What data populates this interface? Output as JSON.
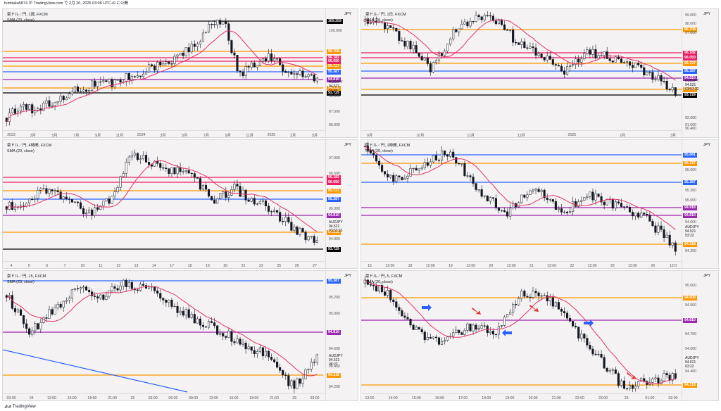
{
  "header": {
    "publish_text": "fumitaka5874 が TradingView.com で 2月 26, 2025 03:06 UTC+9 に公開"
  },
  "footer": {
    "brand": "TradingView"
  },
  "colors": {
    "orange": "#ff9800",
    "pink": "#e91e63",
    "blue": "#2962ff",
    "purple": "#9c27b0",
    "black": "#000000",
    "teal": "#089981",
    "sma": "#e53268"
  },
  "panels": [
    {
      "id": "p1",
      "legend_title": "豪ドル／円, 1週, FXCM",
      "legend_sma": "SMA (20, close)",
      "currency": "JPY",
      "current_symbol": "AUDJPY",
      "current_price": "94.521",
      "current_countdown": "5d 4h",
      "price_ticks": [
        "109.359",
        "105.000",
        "100.000",
        "96.708",
        "96.182",
        "96.050",
        "95.727",
        "95.387",
        "94.810",
        "94.521",
        "94.318",
        "93.729",
        "90.000",
        "87.500",
        "85.000"
      ],
      "levels": [
        {
          "label": "109.359",
          "color": "#000000"
        },
        {
          "label": "96.708",
          "color": "#ff9800"
        },
        {
          "label": "96.182",
          "color": "#e91e63"
        },
        {
          "label": "96.050",
          "color": "#e91e63"
        },
        {
          "label": "95.727",
          "color": "#ff9800"
        },
        {
          "label": "95.387",
          "color": "#2962ff"
        },
        {
          "label": "94.810",
          "color": "#9c27b0"
        },
        {
          "label": "94.318",
          "color": "#ff9800"
        },
        {
          "label": "93.729",
          "color": "#000000"
        }
      ],
      "time_ticks": [
        "2023",
        "3月",
        "5月",
        "7月",
        "9月",
        "11月",
        "2024",
        "3月",
        "5月",
        "7月",
        "9月",
        "11月",
        "2025",
        "3月",
        "5月"
      ]
    },
    {
      "id": "p2",
      "legend_title": "豪ドル／円, 1日, FXCM",
      "legend_sma": "SMA (20, close)",
      "currency": "JPY",
      "current_symbol": "AUDJPY",
      "current_price": "94.521",
      "current_countdown": "03:53:22",
      "price_ticks": [
        "99.000",
        "98.000",
        "97.000",
        "96.708",
        "96.182",
        "96.050",
        "95.727",
        "95.387",
        "94.810",
        "94.521",
        "94.318",
        "93.729",
        "92.000",
        "91.000",
        "90.400"
      ],
      "levels": [
        {
          "label": "96.708",
          "color": "#ff9800"
        },
        {
          "label": "96.182",
          "color": "#e91e63"
        },
        {
          "label": "96.050",
          "color": "#e91e63"
        },
        {
          "label": "95.727",
          "color": "#ff9800"
        },
        {
          "label": "95.387",
          "color": "#2962ff"
        },
        {
          "label": "94.810",
          "color": "#9c27b0"
        },
        {
          "label": "94.318",
          "color": "#ff9800"
        },
        {
          "label": "93.729",
          "color": "#000000"
        }
      ],
      "time_ticks": [
        "9月",
        "10月",
        "11月",
        "12月",
        "2025",
        "2月",
        "3月"
      ]
    },
    {
      "id": "p3",
      "legend_title": "豪ドル／円, 4時間, FXCM",
      "legend_sma": "SMA (20, close)",
      "currency": "JPY",
      "current_symbol": "AUDJPY",
      "current_price": "94.521",
      "current_countdown": "03:53:22",
      "price_ticks": [
        "97.000",
        "96.500",
        "96.182",
        "96.050",
        "95.727",
        "95.387",
        "95.000",
        "94.810",
        "94.521",
        "94.318",
        "94.000",
        "93.729"
      ],
      "levels": [
        {
          "label": "96.182",
          "color": "#e91e63"
        },
        {
          "label": "96.050",
          "color": "#e91e63"
        },
        {
          "label": "95.727",
          "color": "#ff9800"
        },
        {
          "label": "95.387",
          "color": "#2962ff"
        },
        {
          "label": "94.810",
          "color": "#9c27b0"
        },
        {
          "label": "94.318",
          "color": "#ff9800"
        },
        {
          "label": "93.729",
          "color": "#000000"
        }
      ],
      "time_ticks": [
        "4",
        "5",
        "6",
        "7",
        "10",
        "11",
        "12",
        "13",
        "14",
        "17",
        "18",
        "19",
        "20",
        "21",
        "22",
        "25",
        "26",
        "27"
      ]
    },
    {
      "id": "p4",
      "legend_title": "豪ドル／円, 1時間, FXCM",
      "legend_sma": "SMA (20, close)",
      "currency": "JPY",
      "current_symbol": "AUDJPY",
      "current_price": "94.521",
      "current_countdown": "53:22",
      "price_ticks": [
        "95.841",
        "95.727",
        "95.600",
        "95.387",
        "95.200",
        "95.000",
        "94.918",
        "94.810",
        "94.600",
        "94.521",
        "94.318",
        "94.200"
      ],
      "levels": [
        {
          "label": "95.841",
          "color": "#2962ff"
        },
        {
          "label": "95.727",
          "color": "#ff9800"
        },
        {
          "label": "95.387",
          "color": "#2962ff"
        },
        {
          "label": "94.918",
          "color": "#9c27b0"
        },
        {
          "label": "94.810",
          "color": "#9c27b0"
        },
        {
          "label": "94.318",
          "color": "#ff9800"
        }
      ],
      "time_ticks": [
        "15",
        "12:00",
        "18",
        "12:00",
        "19",
        "12:00",
        "20",
        "12:00",
        "21",
        "12:00",
        "22",
        "12:00",
        "25",
        "12:00",
        "26",
        "12:0"
      ]
    },
    {
      "id": "p5",
      "legend_title": "豪ドル／円, 15, FXCM",
      "legend_sma": "SMA (20, close)",
      "currency": "JPY",
      "current_symbol": "AUDJPY",
      "current_price": "94.521",
      "current_countdown": "08:22",
      "price_ticks": [
        "95.387",
        "95.200",
        "95.000",
        "94.810",
        "94.600",
        "94.521",
        "94.400",
        "94.318",
        "94.200"
      ],
      "levels": [
        {
          "label": "95.387",
          "color": "#2962ff"
        },
        {
          "label": "94.810",
          "color": "#9c27b0"
        },
        {
          "label": "94.318",
          "color": "#ff9800"
        }
      ],
      "time_ticks": [
        "03:00",
        "24",
        "12:00",
        "15:00",
        "18:00",
        "21:00",
        "25",
        "03:00",
        "06:00",
        "09:00",
        "12:00",
        "15:00",
        "18:00",
        "21:00",
        "26",
        "03:00"
      ]
    },
    {
      "id": "p6",
      "legend_title": "豪ドル／円, 5, FXCM",
      "legend_sma": "SMA (20, close)",
      "currency": "JPY",
      "current_symbol": "AUDJPY",
      "current_price": "94.521",
      "current_countdown": "03:22",
      "price_ticks": [
        "95.000",
        "94.908",
        "94.900",
        "94.810",
        "94.700",
        "94.600",
        "94.521",
        "94.400",
        "94.318"
      ],
      "levels": [
        {
          "label": "94.908",
          "color": "#ff9800"
        },
        {
          "label": "94.810",
          "color": "#9c27b0"
        },
        {
          "label": "94.318",
          "color": "#ff9800"
        }
      ],
      "time_ticks": [
        "13:00",
        "14:00",
        "15:00",
        "16:00",
        "17:00",
        "18:00",
        "19:00",
        "20:00",
        "21:00",
        "22:00",
        "23:00",
        "26",
        "01:00",
        "02:00"
      ]
    }
  ]
}
